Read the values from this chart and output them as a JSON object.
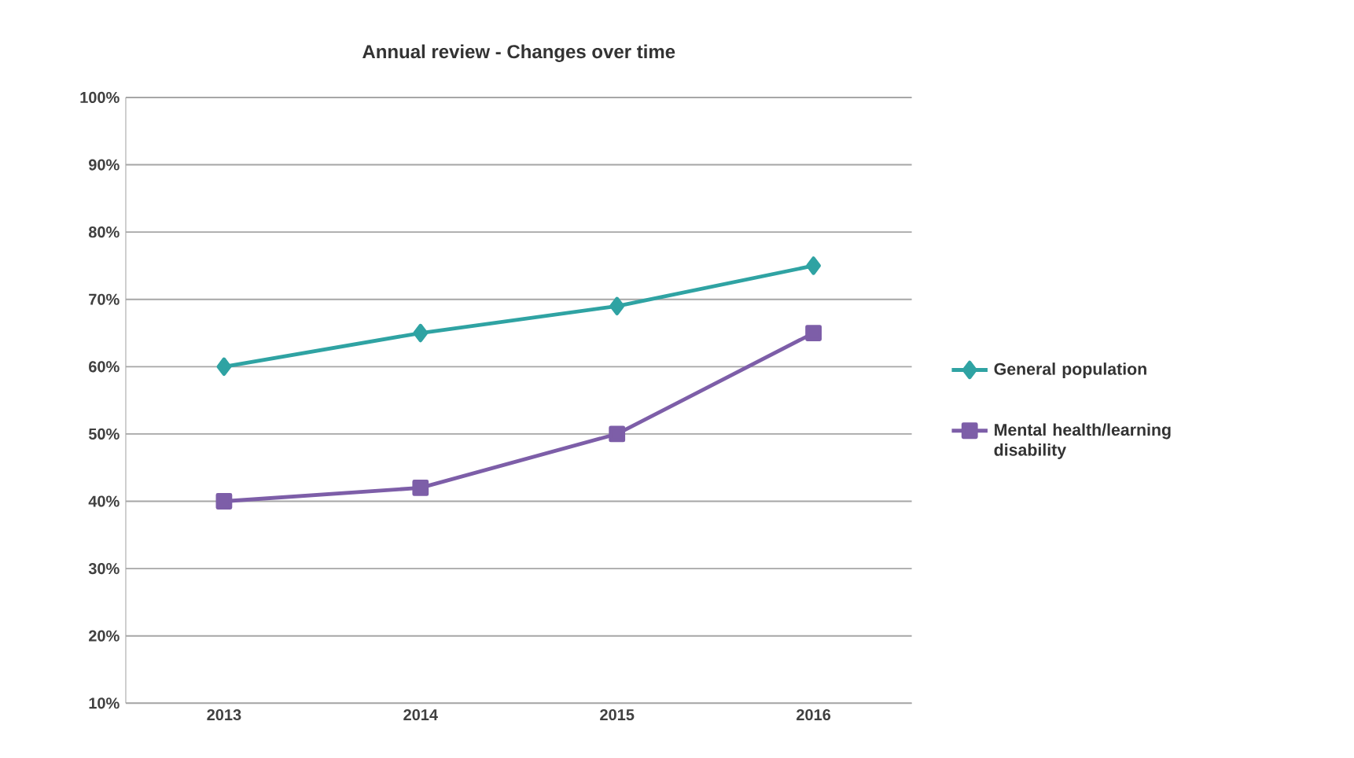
{
  "chart_data": {
    "type": "line",
    "title": "Annual review - Changes over time",
    "categories": [
      "2013",
      "2014",
      "2015",
      "2016"
    ],
    "series": [
      {
        "name": "General population",
        "color": "#2fa3a3",
        "marker": "diamond",
        "values": [
          60,
          65,
          69,
          75
        ]
      },
      {
        "name": "Mental health/learning disability",
        "color": "#7d5ea8",
        "marker": "square",
        "values": [
          40,
          42,
          50,
          65
        ]
      }
    ],
    "ylim": [
      10,
      100
    ],
    "yticks": [
      {
        "value": 10,
        "label": "10%"
      },
      {
        "value": 20,
        "label": "20%"
      },
      {
        "value": 30,
        "label": "30%"
      },
      {
        "value": 40,
        "label": "40%"
      },
      {
        "value": 50,
        "label": "50%"
      },
      {
        "value": 60,
        "label": "60%"
      },
      {
        "value": 70,
        "label": "70%"
      },
      {
        "value": 80,
        "label": "80%"
      },
      {
        "value": 90,
        "label": "90%"
      },
      {
        "value": 100,
        "label": "100%"
      }
    ],
    "grid": "y",
    "legend": "right",
    "line_style": "solid"
  }
}
